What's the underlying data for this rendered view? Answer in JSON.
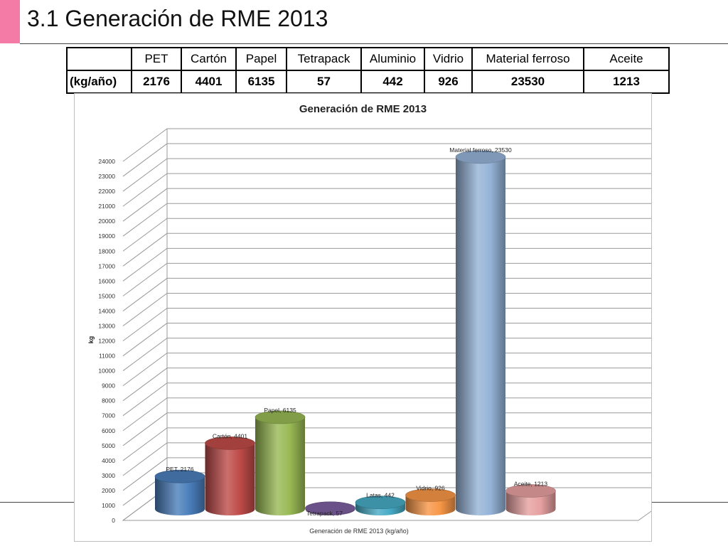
{
  "slide": {
    "title": "3.1 Generación de RME 2013"
  },
  "table": {
    "headers": [
      "",
      "PET",
      "Cartón",
      "Papel",
      "Tetrapack",
      "Aluminio",
      "Vidrio",
      "Material ferroso",
      "Aceite"
    ],
    "row_label": "(kg/año)",
    "values": [
      "2176",
      "4401",
      "6135",
      "57",
      "442",
      "926",
      "23530",
      "1213"
    ]
  },
  "chart_data": {
    "type": "bar",
    "title": "Generación de RME 2013",
    "xlabel": "Generación de RME 2013 (kg/año)",
    "ylabel": "kg",
    "ylim": [
      0,
      24000
    ],
    "y_ticks": [
      "0",
      "1000",
      "2000",
      "3000",
      "4000",
      "5000",
      "6000",
      "7000",
      "8000",
      "9000",
      "10000",
      "11000",
      "12000",
      "13000",
      "14000",
      "15000",
      "16000",
      "17000",
      "18000",
      "19000",
      "20000",
      "21000",
      "22000",
      "23000",
      "24000"
    ],
    "categories": [
      "PET",
      "Cartón",
      "Papel",
      "Tetrapack",
      "Latas",
      "Vidrio",
      "Material ferroso",
      "Aceite"
    ],
    "values": [
      2176,
      4401,
      6135,
      57,
      442,
      926,
      23530,
      1213
    ],
    "data_labels": [
      "PET, 2176",
      "Cartón, 4401",
      "Papel, 6135",
      "Tetrapack, 57",
      "Latas, 442",
      "Vidrio, 926",
      "Material ferroso, 23530",
      "Aceite, 1213"
    ],
    "colors": [
      "#4a7ebb",
      "#be4b48",
      "#98b954",
      "#7d60a0",
      "#46aac5",
      "#f79646",
      "#95b3d7",
      "#e6a0a0"
    ],
    "grid": true,
    "legend": "none"
  }
}
